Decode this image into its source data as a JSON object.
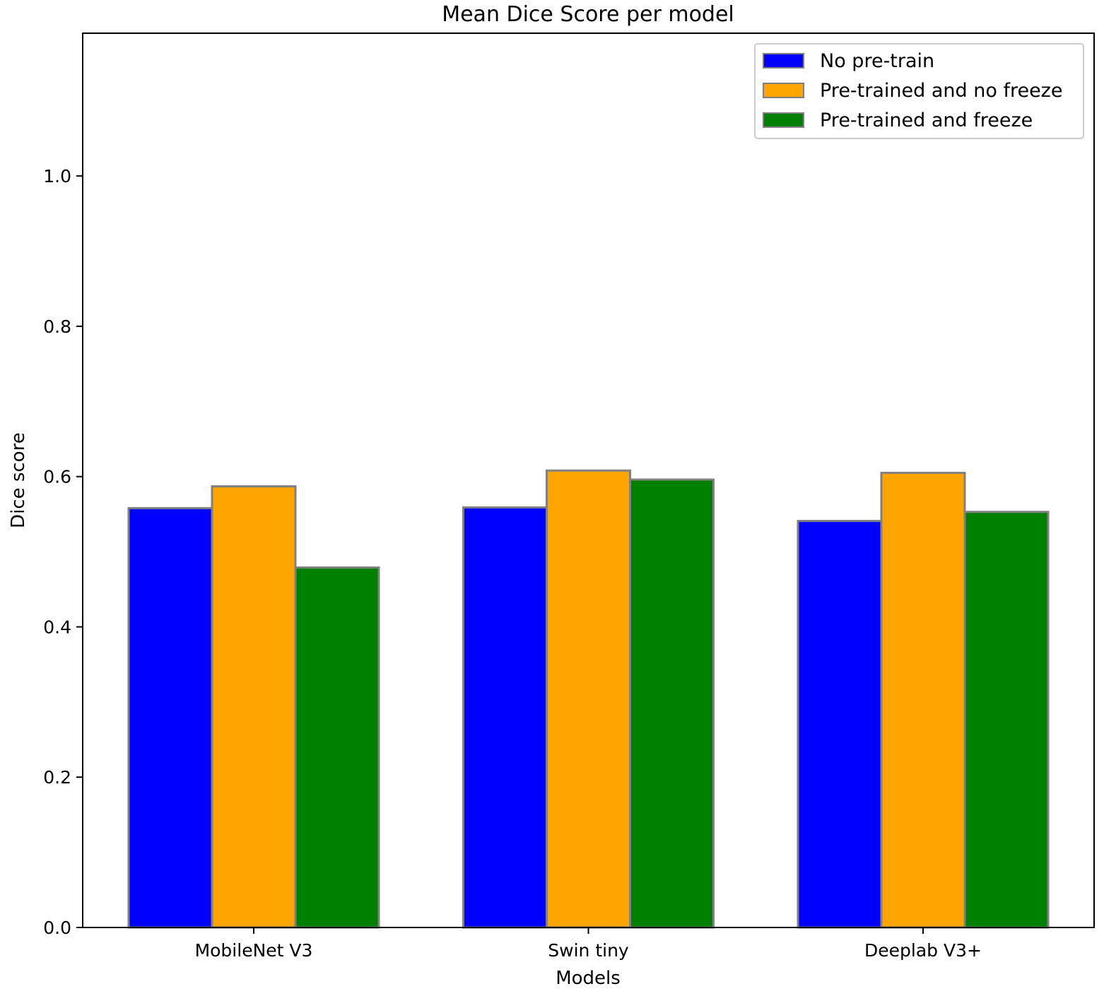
{
  "chart_data": {
    "type": "bar",
    "title": "Mean Dice Score per model",
    "xlabel": "Models",
    "ylabel": "Dice score",
    "categories": [
      "MobileNet V3",
      "Swin tiny",
      "Deeplab V3+"
    ],
    "series": [
      {
        "name": "No pre-train",
        "color": "#0000ff",
        "values": [
          0.558,
          0.559,
          0.541
        ]
      },
      {
        "name": "Pre-trained and no freeze",
        "color": "#ffa500",
        "values": [
          0.587,
          0.608,
          0.605
        ]
      },
      {
        "name": "Pre-trained and freeze",
        "color": "#008000",
        "values": [
          0.479,
          0.596,
          0.553
        ]
      }
    ],
    "ylim": [
      0,
      1.19
    ],
    "yticks": [
      "0.0",
      "0.2",
      "0.4",
      "0.6",
      "0.8",
      "1.0"
    ],
    "grid": false,
    "legend_position": "top-right",
    "bar_edge_color": "#808080"
  }
}
